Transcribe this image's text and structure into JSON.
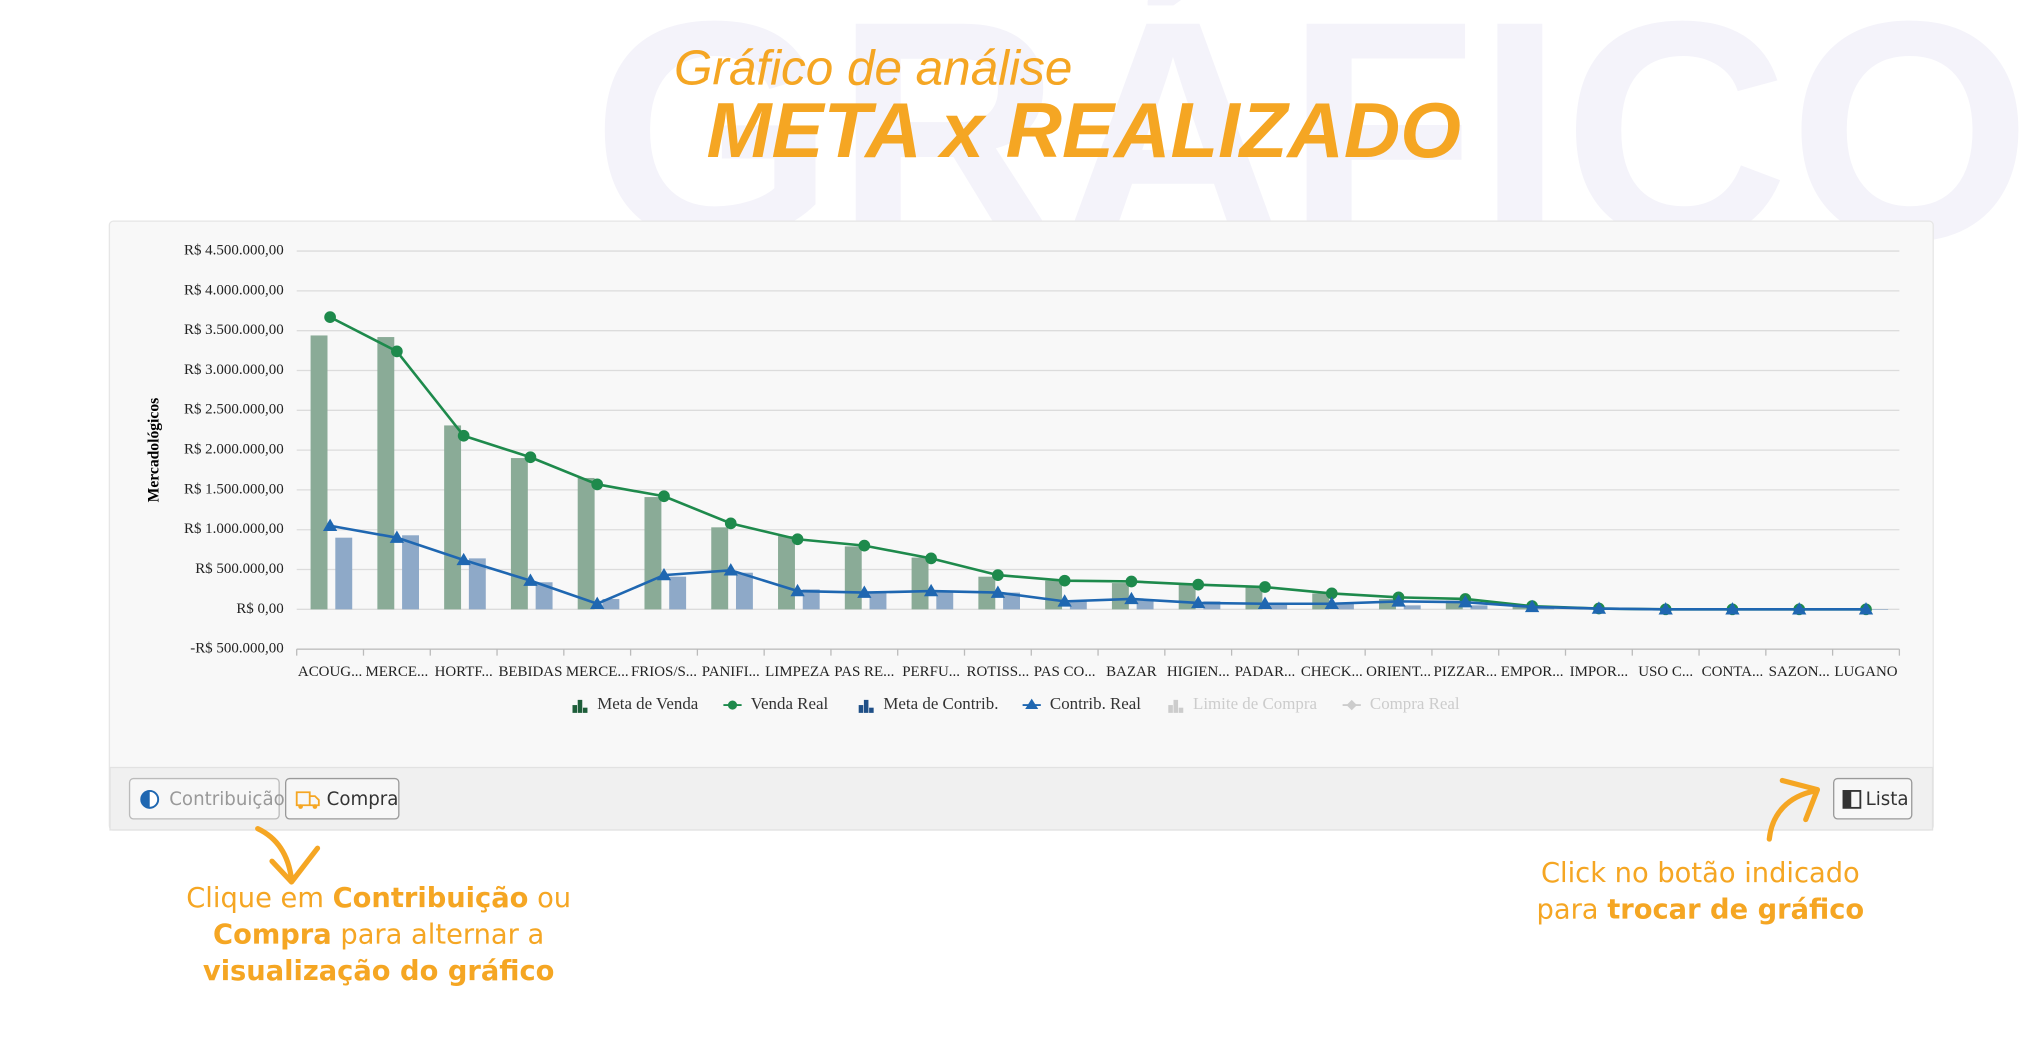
{
  "watermark": "GRÁFICO",
  "header": {
    "subtitle": "Gráfico de análise",
    "title": "META x REALIZADO"
  },
  "chart_data": {
    "type": "bar_line",
    "y_axis_label": "Mercadológicos",
    "categories": [
      "ACOUG...",
      "MERCE...",
      "HORTF...",
      "BEBIDAS",
      "MERCE...",
      "FRIOS/S...",
      "PANIFI...",
      "LIMPEZA",
      "PAS RE...",
      "PERFU...",
      "ROTISS...",
      "PAS CO...",
      "BAZAR",
      "HIGIEN...",
      "PADAR...",
      "CHECK...",
      "ORIENT...",
      "PIZZAR...",
      "EMPOR...",
      "IMPOR...",
      "USO C...",
      "CONTA...",
      "SAZON...",
      "LUGANO"
    ],
    "ylim": [
      -500000,
      4500000
    ],
    "yticks": [
      {
        "value": -500000,
        "label": "-R$ 500.000,00"
      },
      {
        "value": 0,
        "label": "R$ 0,00"
      },
      {
        "value": 500000,
        "label": "R$ 500.000,00"
      },
      {
        "value": 1000000,
        "label": "R$ 1.000.000,00"
      },
      {
        "value": 1500000,
        "label": "R$ 1.500.000,00"
      },
      {
        "value": 2000000,
        "label": "R$ 2.000.000,00"
      },
      {
        "value": 2500000,
        "label": "R$ 2.500.000,00"
      },
      {
        "value": 3000000,
        "label": "R$ 3.000.000,00"
      },
      {
        "value": 3500000,
        "label": "R$ 3.500.000,00"
      },
      {
        "value": 4000000,
        "label": "R$ 4.000.000,00"
      },
      {
        "value": 4500000,
        "label": "R$ 4.500.000,00"
      }
    ],
    "grid": true,
    "legend": "bottom",
    "series": [
      {
        "name": "Meta de Venda",
        "kind": "bar",
        "color": "#8aab97",
        "legend_color": "#1e5e3a",
        "visible": true,
        "values": [
          3440000,
          3420000,
          2310000,
          1900000,
          1650000,
          1410000,
          1030000,
          920000,
          790000,
          650000,
          410000,
          360000,
          330000,
          310000,
          280000,
          200000,
          130000,
          110000,
          50000,
          20000,
          5000,
          0,
          0,
          0
        ]
      },
      {
        "name": "Venda Real",
        "kind": "line",
        "marker": "circle",
        "color": "#1e8a4c",
        "visible": true,
        "values": [
          3670000,
          3240000,
          2180000,
          1910000,
          1570000,
          1420000,
          1080000,
          880000,
          800000,
          640000,
          430000,
          360000,
          350000,
          310000,
          280000,
          200000,
          150000,
          130000,
          40000,
          10000,
          0,
          0,
          0,
          0
        ]
      },
      {
        "name": "Meta de Contrib.",
        "kind": "bar",
        "color": "#8ea9c8",
        "legend_color": "#1f4f87",
        "visible": true,
        "values": [
          900000,
          930000,
          640000,
          340000,
          130000,
          410000,
          460000,
          250000,
          210000,
          230000,
          210000,
          110000,
          110000,
          100000,
          70000,
          70000,
          50000,
          50000,
          30000,
          10000,
          0,
          0,
          0,
          0
        ]
      },
      {
        "name": "Contrib. Real",
        "kind": "line",
        "marker": "triangle",
        "color": "#1f67b1",
        "visible": true,
        "values": [
          1050000,
          900000,
          620000,
          360000,
          70000,
          430000,
          490000,
          230000,
          210000,
          230000,
          210000,
          100000,
          130000,
          80000,
          70000,
          70000,
          100000,
          90000,
          30000,
          10000,
          0,
          0,
          0,
          0
        ]
      },
      {
        "name": "Limite de Compra",
        "kind": "bar",
        "color": "#cccccc",
        "visible": false,
        "values": [
          null,
          null,
          null,
          null,
          null,
          null,
          null,
          null,
          null,
          null,
          null,
          null,
          null,
          null,
          null,
          null,
          null,
          null,
          null,
          null,
          null,
          null,
          null,
          null
        ]
      },
      {
        "name": "Compra Real",
        "kind": "line",
        "marker": "diamond",
        "color": "#cccccc",
        "visible": false,
        "values": [
          null,
          null,
          null,
          null,
          null,
          null,
          null,
          null,
          null,
          null,
          null,
          null,
          null,
          null,
          null,
          null,
          null,
          null,
          null,
          null,
          null,
          null,
          null,
          null
        ]
      }
    ]
  },
  "buttons": {
    "contribuicao": "Contribuição",
    "compra": "Compra",
    "lista": "Lista"
  },
  "notes": {
    "left": [
      [
        "Clique em ",
        "Contribuição",
        " ou"
      ],
      [
        "Compra",
        " para alternar a"
      ],
      [
        "visualização do gráfico"
      ]
    ],
    "right": [
      [
        "Click no botão indicado"
      ],
      [
        "para ",
        "trocar de gráfico"
      ]
    ]
  }
}
